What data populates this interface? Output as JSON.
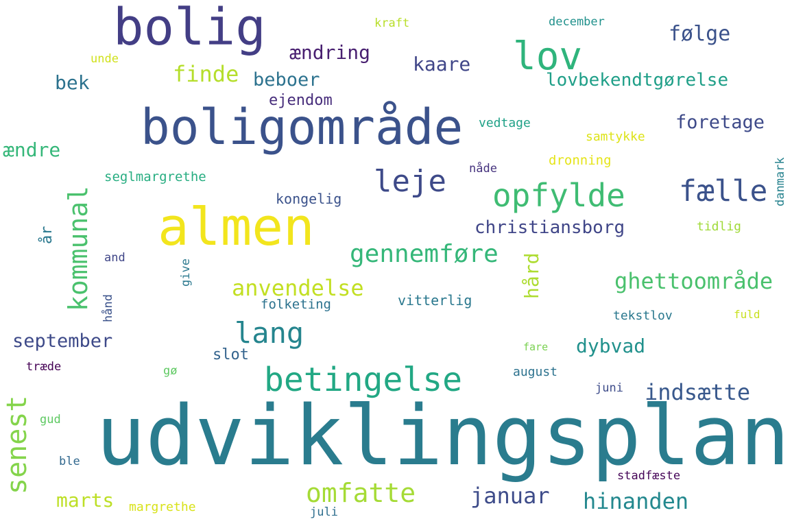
{
  "words": [
    {
      "text": "udviklingsplan",
      "color": "#2a7c8e"
    },
    {
      "text": "almen",
      "color": "#f2e51d"
    },
    {
      "text": "boligområde",
      "color": "#3b528b"
    },
    {
      "text": "bolig",
      "color": "#433e85"
    },
    {
      "text": "lov",
      "color": "#2fb47c"
    },
    {
      "text": "betingelse",
      "color": "#22a884"
    },
    {
      "text": "opfylde",
      "color": "#3fbc73"
    },
    {
      "text": "leje",
      "color": "#3e4a89"
    },
    {
      "text": "fælle",
      "color": "#3b528b"
    },
    {
      "text": "lang",
      "color": "#25858e"
    },
    {
      "text": "senest",
      "color": "#84d44b"
    },
    {
      "text": "kommunal",
      "color": "#4ac16d"
    },
    {
      "text": "omfatte",
      "color": "#a5db36"
    },
    {
      "text": "gennemføre",
      "color": "#35b779"
    },
    {
      "text": "ghettoområde",
      "color": "#4ac16d"
    },
    {
      "text": "indsætte",
      "color": "#38588c"
    },
    {
      "text": "hinanden",
      "color": "#23888e"
    },
    {
      "text": "januar",
      "color": "#3e4c8a"
    },
    {
      "text": "anvendelse",
      "color": "#c2df23"
    },
    {
      "text": "finde",
      "color": "#b5de2b"
    },
    {
      "text": "følge",
      "color": "#3b528b"
    },
    {
      "text": "ændring",
      "color": "#481f70"
    },
    {
      "text": "kaare",
      "color": "#404688"
    },
    {
      "text": "beboer",
      "color": "#2c728e"
    },
    {
      "text": "lovbekendtgørelse",
      "color": "#1f9f88"
    },
    {
      "text": "foretage",
      "color": "#3e4a89"
    },
    {
      "text": "ændre",
      "color": "#35b779"
    },
    {
      "text": "christiansborg",
      "color": "#404688"
    },
    {
      "text": "september",
      "color": "#3e4a89"
    },
    {
      "text": "marts",
      "color": "#bddf26"
    },
    {
      "text": "dybvad",
      "color": "#21918c"
    },
    {
      "text": "hård",
      "color": "#addc30"
    },
    {
      "text": "bek",
      "color": "#2c728e"
    },
    {
      "text": "ejendom",
      "color": "#472d7b"
    },
    {
      "text": "år",
      "color": "#2a788e"
    },
    {
      "text": "slot",
      "color": "#33638d"
    },
    {
      "text": "vitterlig",
      "color": "#2a788e"
    },
    {
      "text": "folketing",
      "color": "#2c728e"
    },
    {
      "text": "kongelig",
      "color": "#3b528b"
    },
    {
      "text": "seglmargrethe",
      "color": "#27ad81"
    },
    {
      "text": "vedtage",
      "color": "#1fa187"
    },
    {
      "text": "samtykke",
      "color": "#dde318"
    },
    {
      "text": "dronning",
      "color": "#e5e419"
    },
    {
      "text": "nåde",
      "color": "#46337e"
    },
    {
      "text": "danmark",
      "color": "#26828e"
    },
    {
      "text": "tidlig",
      "color": "#a0da39"
    },
    {
      "text": "december",
      "color": "#21918c"
    },
    {
      "text": "kraft",
      "color": "#b8de29"
    },
    {
      "text": "unde",
      "color": "#d0e11c"
    },
    {
      "text": "and",
      "color": "#404688"
    },
    {
      "text": "give",
      "color": "#2a788e"
    },
    {
      "text": "hånd",
      "color": "#3b528b"
    },
    {
      "text": "tekstlov",
      "color": "#2a788e"
    },
    {
      "text": "fuld",
      "color": "#c8e020"
    },
    {
      "text": "fare",
      "color": "#7ad151"
    },
    {
      "text": "august",
      "color": "#2c728e"
    },
    {
      "text": "juni",
      "color": "#3e4c8a"
    },
    {
      "text": "træde",
      "color": "#440154"
    },
    {
      "text": "gø",
      "color": "#5ec962"
    },
    {
      "text": "gud",
      "color": "#5ec962"
    },
    {
      "text": "ble",
      "color": "#31688e"
    },
    {
      "text": "margrethe",
      "color": "#d8e219"
    },
    {
      "text": "juli",
      "color": "#2e6e8e"
    },
    {
      "text": "stadfæste",
      "color": "#450457"
    }
  ]
}
